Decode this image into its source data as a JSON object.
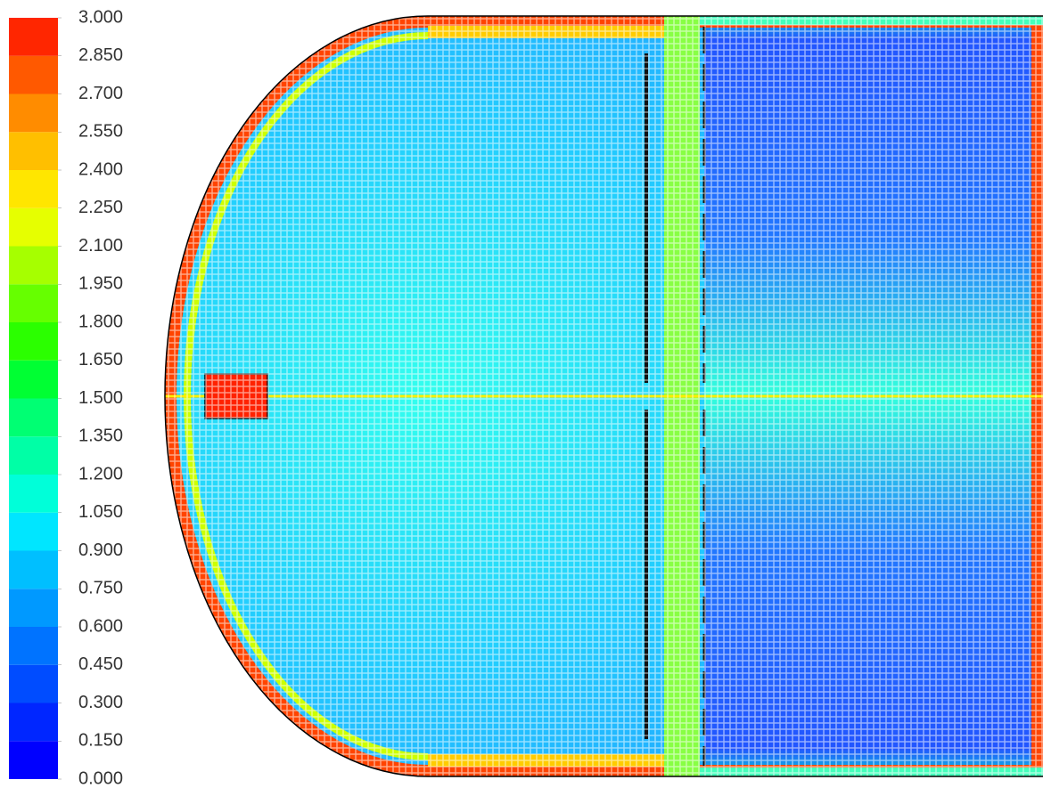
{
  "chart_data": {
    "type": "contour",
    "ylim": [
      0,
      3
    ],
    "yticks": [
      {
        "value": 0,
        "label": "0.000"
      },
      {
        "value": 0.15,
        "label": "0.150"
      },
      {
        "value": 0.3,
        "label": "0.300"
      },
      {
        "value": 0.45,
        "label": "0.450"
      },
      {
        "value": 0.6,
        "label": "0.600"
      },
      {
        "value": 0.75,
        "label": "0.750"
      },
      {
        "value": 0.9,
        "label": "0.900"
      },
      {
        "value": 1.05,
        "label": "1.050"
      },
      {
        "value": 1.2,
        "label": "1.200"
      },
      {
        "value": 1.35,
        "label": "1.350"
      },
      {
        "value": 1.5,
        "label": "1.500"
      },
      {
        "value": 1.65,
        "label": "1.650"
      },
      {
        "value": 1.8,
        "label": "1.800"
      },
      {
        "value": 1.95,
        "label": "1.950"
      },
      {
        "value": 2.1,
        "label": "2.100"
      },
      {
        "value": 2.25,
        "label": "2.250"
      },
      {
        "value": 2.4,
        "label": "2.400"
      },
      {
        "value": 2.55,
        "label": "2.550"
      },
      {
        "value": 2.7,
        "label": "2.700"
      },
      {
        "value": 2.85,
        "label": "2.850"
      },
      {
        "value": 3,
        "label": "3.000"
      }
    ],
    "colors": [
      "#0000ff",
      "#0026ff",
      "#004cff",
      "#0073ff",
      "#0099ff",
      "#00bfff",
      "#00e6ff",
      "#00ffd9",
      "#00ffa6",
      "#00ff73",
      "#00ff33",
      "#2bff00",
      "#66ff00",
      "#a6ff00",
      "#e6ff00",
      "#ffe600",
      "#ffbf00",
      "#ff8c00",
      "#ff5900",
      "#ff2600"
    ]
  }
}
